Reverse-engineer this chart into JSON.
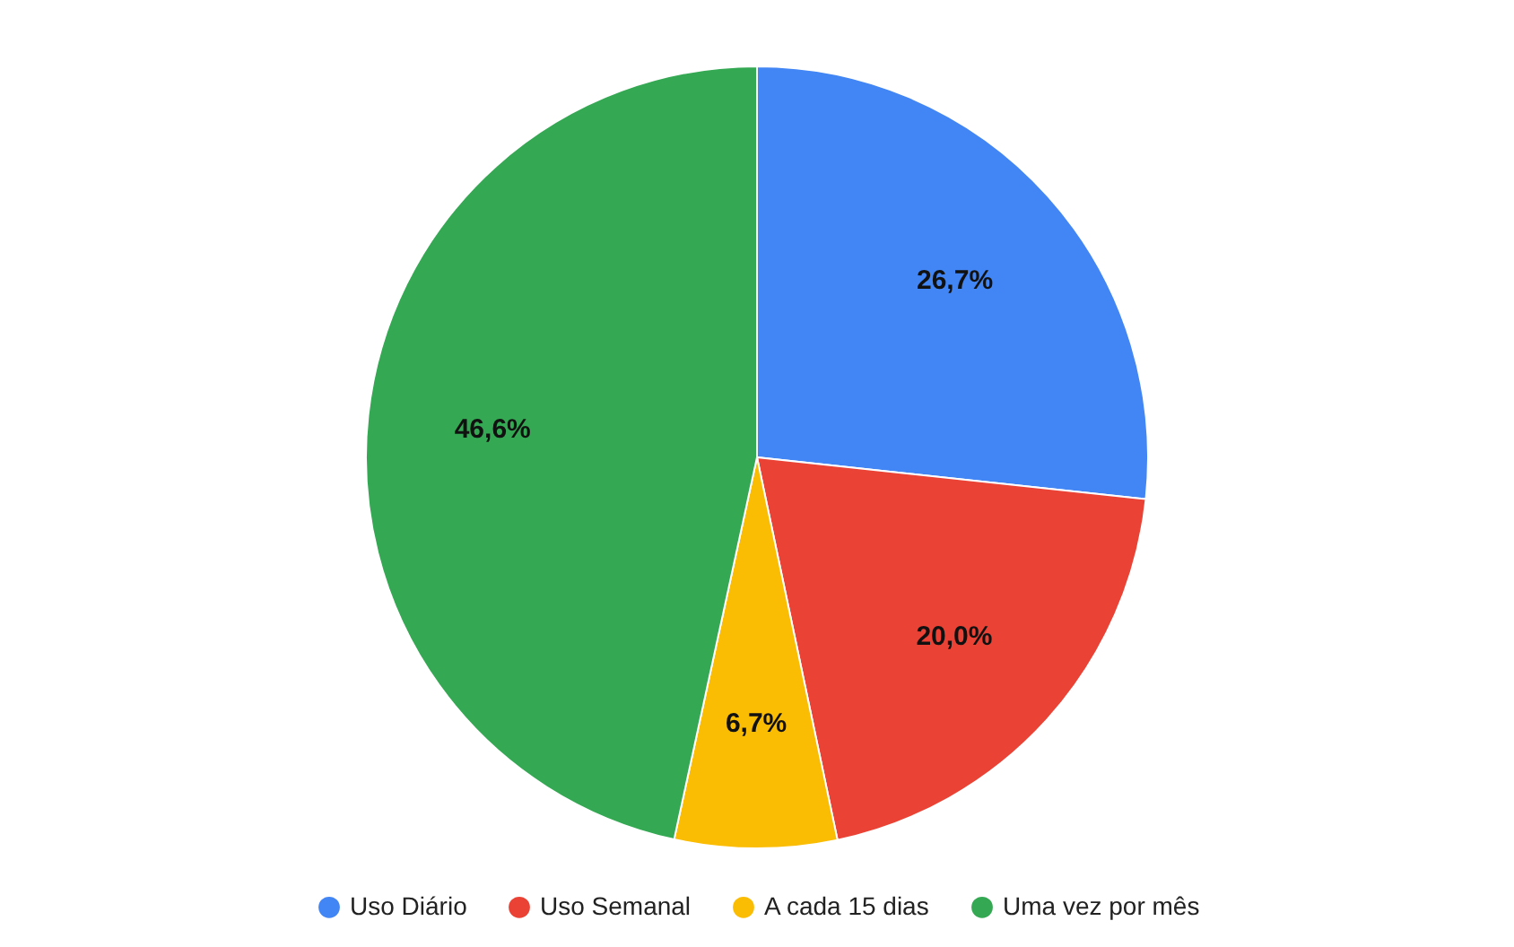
{
  "chart_data": {
    "type": "pie",
    "categories": [
      "Uso Diário",
      "Uso Semanal",
      "A cada 15 dias",
      "Uma vez por mês"
    ],
    "values": [
      26.7,
      20.0,
      6.7,
      46.6
    ],
    "colors": [
      "#4285f4",
      "#ea4335",
      "#fbbc04",
      "#34a853"
    ],
    "value_labels": [
      "26,7%",
      "20,0%",
      "6,7%",
      "46,6%"
    ],
    "legend": "bottom"
  }
}
